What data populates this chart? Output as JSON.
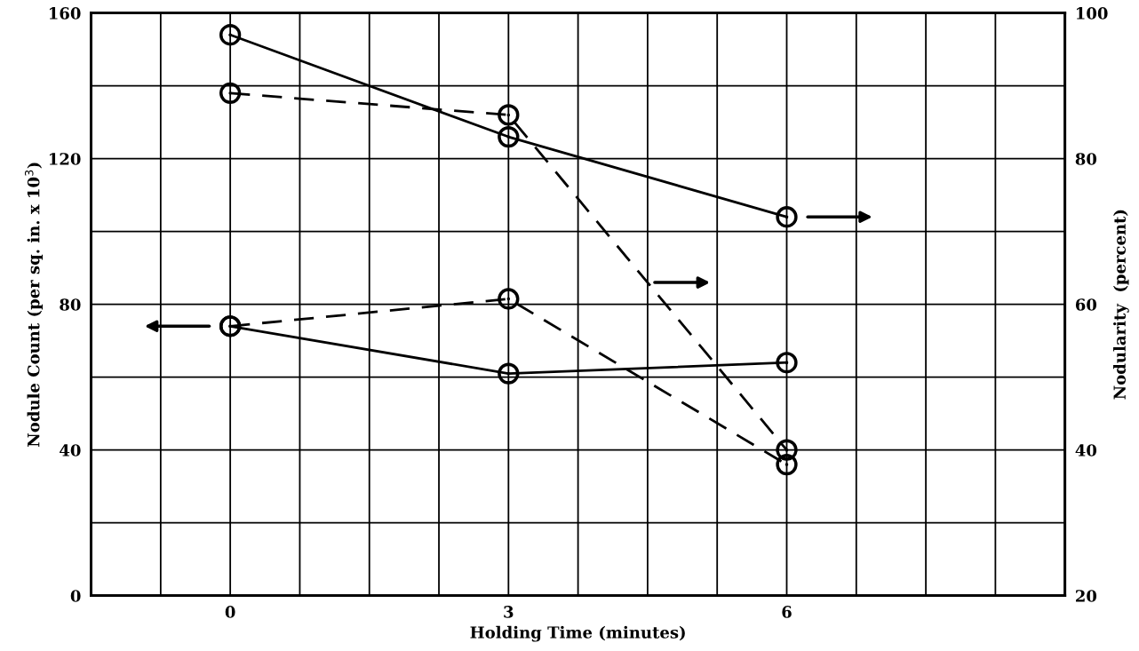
{
  "chart_data": {
    "type": "line",
    "xlabel": "Holding Time (minutes)",
    "ylabel": "Nodule Count (per sq. in. x 10$^{3}$)",
    "y2label": "Nodularity  (percent)",
    "x": [
      0,
      3,
      6
    ],
    "series": [
      {
        "color": "#000000",
        "axis": "y2",
        "line_style": "solid",
        "values": [
          97,
          83,
          72
        ]
      },
      {
        "color": "#000000",
        "axis": "y2",
        "line_style": "dashed",
        "values": [
          89,
          86,
          40
        ]
      },
      {
        "color": "#000000",
        "axis": "y",
        "line_style": "solid",
        "values": [
          74,
          61,
          64
        ]
      },
      {
        "color": "#000000",
        "axis": "y",
        "line_style": "dashed",
        "values": [
          74,
          81.5,
          36
        ]
      }
    ],
    "marker": "circle",
    "grid": true,
    "xlim": [
      -1.5,
      9
    ],
    "xticks": [
      {
        "value": -0.75,
        "label": null
      },
      0,
      {
        "value": 0.75,
        "label": null
      },
      {
        "value": 1.5,
        "label": null
      },
      {
        "value": 2.25,
        "label": null
      },
      3,
      {
        "value": 3.75,
        "label": null
      },
      {
        "value": 4.5,
        "label": null
      },
      {
        "value": 5.25,
        "label": null
      },
      6,
      {
        "value": 6.75,
        "label": null
      },
      {
        "value": 7.5,
        "label": null
      },
      {
        "value": 8.25,
        "label": null
      }
    ],
    "ylim": [
      0,
      160
    ],
    "yticks": [
      0,
      {
        "value": 20,
        "label": null
      },
      40,
      {
        "value": 60,
        "label": null
      },
      80,
      {
        "value": 100,
        "label": null
      },
      120,
      {
        "value": 140,
        "label": null
      },
      160
    ],
    "y2lim": [
      20,
      100
    ],
    "y2ticks": [
      20,
      40,
      60,
      80,
      100
    ]
  }
}
